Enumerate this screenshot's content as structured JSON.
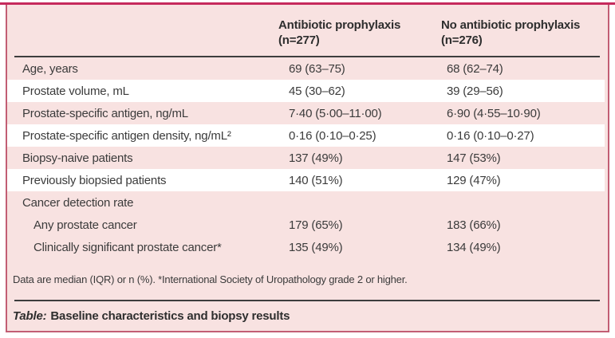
{
  "colors": {
    "top_rule": "#C62A5D",
    "card_border": "#C25E74",
    "card_background": "#F8E2E1",
    "stripe": "#FFFFFF",
    "dark_rule": "#3D3D3D",
    "text": "#3B3B3B"
  },
  "header": {
    "col1": {
      "title": "Antibiotic prophylaxis",
      "n": "(n=277)"
    },
    "col2": {
      "title": "No antibiotic prophylaxis",
      "n": "(n=276)"
    }
  },
  "rows": [
    {
      "label": "Age, years",
      "c1": "69 (63–75)",
      "c2": "68 (62–74)"
    },
    {
      "label": "Prostate volume, mL",
      "c1": "45 (30–62)",
      "c2": "39 (29–56)"
    },
    {
      "label": "Prostate-specific antigen, ng/mL",
      "c1": "7·40 (5·00–11·00)",
      "c2": "6·90 (4·55–10·90)"
    },
    {
      "label": "Prostate-specific antigen density, ng/mL²",
      "c1": "0·16 (0·10–0·25)",
      "c2": "0·16 (0·10–0·27)"
    },
    {
      "label": "Biopsy-naive patients",
      "c1": "137 (49%)",
      "c2": "147 (53%)"
    },
    {
      "label": "Previously biopsied patients",
      "c1": "140 (51%)",
      "c2": "129 (47%)"
    },
    {
      "label": "Cancer detection rate",
      "c1": "",
      "c2": ""
    },
    {
      "label": "Any prostate cancer",
      "c1": "179 (65%)",
      "c2": "183 (66%)"
    },
    {
      "label": "Clinically significant prostate cancer*",
      "c1": "135 (49%)",
      "c2": "134 (49%)"
    }
  ],
  "footnote": "Data are median (IQR) or n (%). *International Society of Uropathology grade 2 or higher.",
  "caption": {
    "prefix": "Table:",
    "text": "Baseline characteristics and biopsy results"
  }
}
